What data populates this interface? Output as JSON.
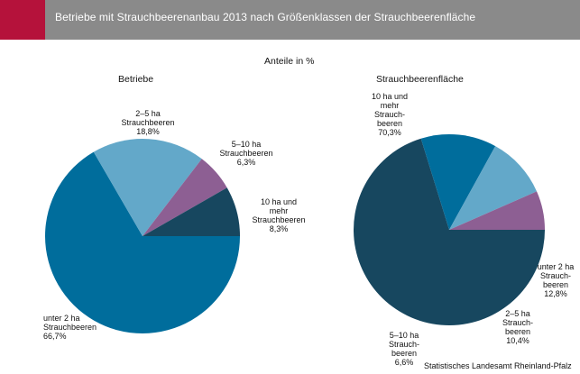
{
  "title": "Betriebe mit Strauchbeerenanbau 2013 nach Größenklassen der Strauchbeerenfläche",
  "unit_label": "Anteile in %",
  "source": "Statistisches Landesamt Rheinland-Pfalz",
  "colors": {
    "title_bar": "#8a8a8a",
    "accent": "#b5123b",
    "unter_2_ha": "#006d9c",
    "2_5_ha": "#63a8c9",
    "5_10_ha": "#8d5f93",
    "10_ha_mehr": "#17475f"
  },
  "chart_data": [
    {
      "type": "pie",
      "title": "Betriebe",
      "labels": [
        [
          "unter 2 ha",
          "Strauchbeeren",
          "66,7%"
        ],
        [
          "2–5 ha",
          "Strauchbeeren",
          "18,8%"
        ],
        [
          "5–10 ha",
          "Strauchbeeren",
          "6,3%"
        ],
        [
          "10 ha und",
          "mehr",
          "Strauchbeeren",
          "8,3%"
        ]
      ],
      "categories": [
        "unter 2 ha Strauchbeeren",
        "2–5 ha Strauchbeeren",
        "5–10 ha Strauchbeeren",
        "10 ha und mehr Strauchbeeren"
      ],
      "values": [
        66.7,
        18.8,
        6.3,
        8.3
      ]
    },
    {
      "type": "pie",
      "title": "Strauchbeerenfläche",
      "labels": [
        [
          "unter 2 ha",
          "Strauch-",
          "beeren",
          "12,8%"
        ],
        [
          "2–5 ha",
          "Strauch-",
          "beeren",
          "10,4%"
        ],
        [
          "5–10 ha",
          "Strauch-",
          "beeren",
          "6,6%"
        ],
        [
          "10 ha und",
          "mehr",
          "Strauch-",
          "beeren",
          "70,3%"
        ]
      ],
      "categories": [
        "unter 2 ha Strauchbeeren",
        "2–5 ha Strauchbeeren",
        "5–10 ha Strauchbeeren",
        "10 ha und mehr Strauchbeeren"
      ],
      "values": [
        12.8,
        10.4,
        6.6,
        70.3
      ]
    }
  ]
}
